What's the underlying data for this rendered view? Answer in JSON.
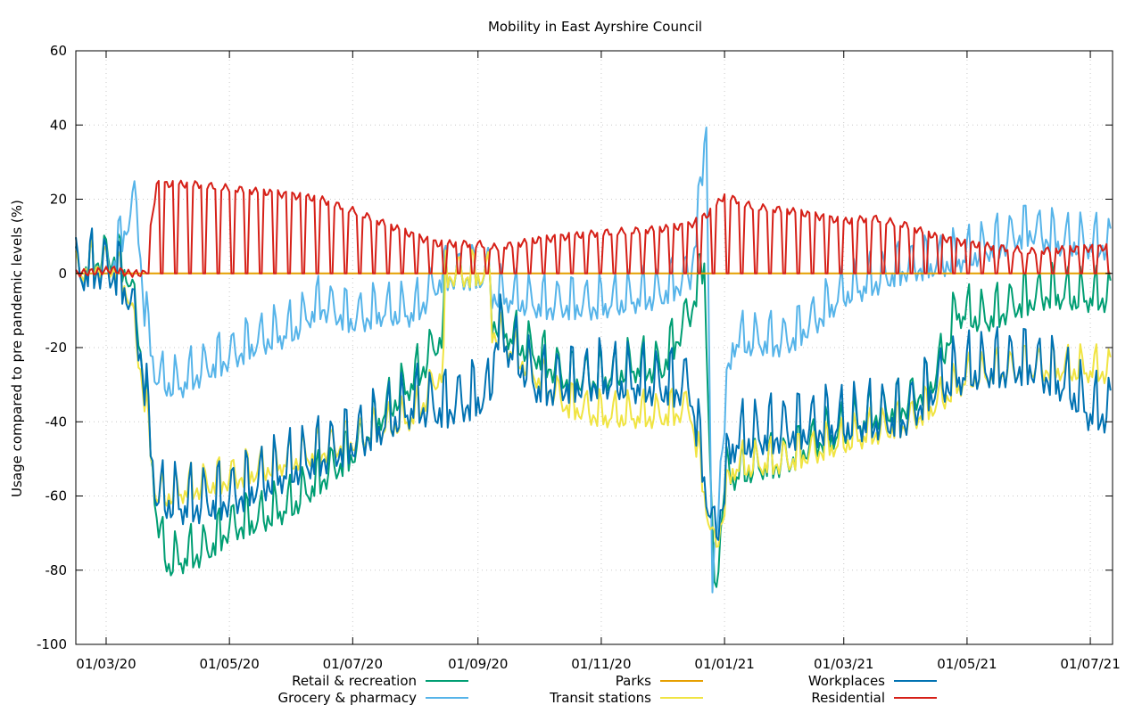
{
  "chart_data": {
    "type": "line",
    "title": "Mobility in East Ayrshire Council",
    "xlabel": "",
    "ylabel": "Usage compared to pre pandemic levels (%)",
    "ylim": [
      -100,
      60
    ],
    "yticks": [
      -100,
      -80,
      -60,
      -40,
      -20,
      0,
      20,
      40,
      60
    ],
    "xlim": [
      "2020-02-15",
      "2021-07-12"
    ],
    "xticks": [
      {
        "date": "2020-03-01",
        "label": "01/03/20"
      },
      {
        "date": "2020-05-01",
        "label": "01/05/20"
      },
      {
        "date": "2020-07-01",
        "label": "01/07/20"
      },
      {
        "date": "2020-09-01",
        "label": "01/09/20"
      },
      {
        "date": "2020-11-01",
        "label": "01/11/20"
      },
      {
        "date": "2021-01-01",
        "label": "01/01/21"
      },
      {
        "date": "2021-03-01",
        "label": "01/03/21"
      },
      {
        "date": "2021-05-01",
        "label": "01/05/21"
      },
      {
        "date": "2021-07-01",
        "label": "01/07/21"
      }
    ],
    "grid": true,
    "legend_position": "bottom",
    "series": [
      {
        "name": "Retail & recreation",
        "color": "#009e73",
        "points": [
          [
            "2020-02-15",
            0
          ],
          [
            "2020-02-25",
            4
          ],
          [
            "2020-03-05",
            5
          ],
          [
            "2020-03-12",
            0
          ],
          [
            "2020-03-17",
            -15
          ],
          [
            "2020-03-22",
            -40
          ],
          [
            "2020-03-27",
            -70
          ],
          [
            "2020-04-01",
            -78
          ],
          [
            "2020-04-10",
            -76
          ],
          [
            "2020-04-20",
            -74
          ],
          [
            "2020-05-01",
            -68
          ],
          [
            "2020-05-15",
            -66
          ],
          [
            "2020-06-01",
            -62
          ],
          [
            "2020-06-15",
            -55
          ],
          [
            "2020-07-01",
            -48
          ],
          [
            "2020-07-15",
            -38
          ],
          [
            "2020-08-01",
            -28
          ],
          [
            "2020-08-10",
            -20
          ],
          [
            "2020-08-15",
            -15
          ],
          [
            "2020-08-16",
            0
          ],
          [
            "2020-09-07",
            0
          ],
          [
            "2020-09-08",
            -12
          ],
          [
            "2020-09-20",
            -18
          ],
          [
            "2020-10-01",
            -22
          ],
          [
            "2020-10-15",
            -28
          ],
          [
            "2020-11-01",
            -28
          ],
          [
            "2020-11-15",
            -25
          ],
          [
            "2020-12-01",
            -25
          ],
          [
            "2020-12-15",
            -10
          ],
          [
            "2020-12-22",
            3
          ],
          [
            "2020-12-27",
            -90
          ],
          [
            "2021-01-01",
            -55
          ],
          [
            "2021-01-15",
            -52
          ],
          [
            "2021-02-01",
            -50
          ],
          [
            "2021-02-15",
            -45
          ],
          [
            "2021-03-01",
            -42
          ],
          [
            "2021-03-15",
            -38
          ],
          [
            "2021-04-01",
            -35
          ],
          [
            "2021-04-15",
            -28
          ],
          [
            "2021-04-26",
            -10
          ],
          [
            "2021-05-10",
            -12
          ],
          [
            "2021-05-25",
            -8
          ],
          [
            "2021-06-10",
            -5
          ],
          [
            "2021-06-25",
            -6
          ],
          [
            "2021-07-11",
            -6
          ]
        ]
      },
      {
        "name": "Grocery & pharmacy",
        "color": "#56b4e9",
        "points": [
          [
            "2020-02-15",
            0
          ],
          [
            "2020-02-25",
            2
          ],
          [
            "2020-03-05",
            4
          ],
          [
            "2020-03-12",
            15
          ],
          [
            "2020-03-16",
            20
          ],
          [
            "2020-03-20",
            -10
          ],
          [
            "2020-03-26",
            -28
          ],
          [
            "2020-04-05",
            -30
          ],
          [
            "2020-04-20",
            -25
          ],
          [
            "2020-05-01",
            -22
          ],
          [
            "2020-05-15",
            -18
          ],
          [
            "2020-06-01",
            -15
          ],
          [
            "2020-06-15",
            -8
          ],
          [
            "2020-07-01",
            -12
          ],
          [
            "2020-07-15",
            -10
          ],
          [
            "2020-08-01",
            -10
          ],
          [
            "2020-08-12",
            -2
          ],
          [
            "2020-08-16",
            0
          ],
          [
            "2020-09-07",
            0
          ],
          [
            "2020-09-08",
            -5
          ],
          [
            "2020-10-01",
            -8
          ],
          [
            "2020-11-01",
            -8
          ],
          [
            "2020-12-01",
            -5
          ],
          [
            "2020-12-15",
            0
          ],
          [
            "2020-12-20",
            20
          ],
          [
            "2020-12-23",
            43
          ],
          [
            "2020-12-26",
            -90
          ],
          [
            "2020-12-30",
            -50
          ],
          [
            "2021-01-05",
            -18
          ],
          [
            "2021-02-01",
            -18
          ],
          [
            "2021-02-15",
            -12
          ],
          [
            "2021-03-01",
            -5
          ],
          [
            "2021-03-15",
            -2
          ],
          [
            "2021-04-01",
            2
          ],
          [
            "2021-04-15",
            3
          ],
          [
            "2021-05-01",
            5
          ],
          [
            "2021-05-15",
            8
          ],
          [
            "2021-06-01",
            12
          ],
          [
            "2021-06-15",
            9
          ],
          [
            "2021-07-11",
            8
          ]
        ]
      },
      {
        "name": "Parks",
        "color": "#e69f00",
        "points": [
          [
            "2020-02-15",
            0
          ],
          [
            "2021-07-11",
            0
          ]
        ]
      },
      {
        "name": "Transit stations",
        "color": "#f0e442",
        "points": [
          [
            "2020-02-15",
            0
          ],
          [
            "2020-02-25",
            3
          ],
          [
            "2020-03-05",
            2
          ],
          [
            "2020-03-12",
            -5
          ],
          [
            "2020-03-18",
            -25
          ],
          [
            "2020-03-26",
            -60
          ],
          [
            "2020-04-10",
            -58
          ],
          [
            "2020-05-01",
            -55
          ],
          [
            "2020-06-01",
            -50
          ],
          [
            "2020-07-01",
            -45
          ],
          [
            "2020-08-01",
            -38
          ],
          [
            "2020-08-15",
            -25
          ],
          [
            "2020-08-16",
            0
          ],
          [
            "2020-09-07",
            0
          ],
          [
            "2020-09-08",
            -15
          ],
          [
            "2020-10-01",
            -28
          ],
          [
            "2020-10-15",
            -35
          ],
          [
            "2020-11-01",
            -38
          ],
          [
            "2020-12-01",
            -38
          ],
          [
            "2020-12-15",
            -36
          ],
          [
            "2020-12-27",
            -75
          ],
          [
            "2021-01-05",
            -52
          ],
          [
            "2021-02-01",
            -50
          ],
          [
            "2021-03-01",
            -45
          ],
          [
            "2021-04-01",
            -40
          ],
          [
            "2021-04-15",
            -35
          ],
          [
            "2021-05-01",
            -28
          ],
          [
            "2021-06-01",
            -25
          ],
          [
            "2021-07-11",
            -26
          ]
        ]
      },
      {
        "name": "Workplaces",
        "color": "#0072b2",
        "points": [
          [
            "2020-02-15",
            0
          ],
          [
            "2020-02-25",
            2
          ],
          [
            "2020-03-05",
            1
          ],
          [
            "2020-03-12",
            -5
          ],
          [
            "2020-03-18",
            -20
          ],
          [
            "2020-03-26",
            -60
          ],
          [
            "2020-04-10",
            -62
          ],
          [
            "2020-05-01",
            -60
          ],
          [
            "2020-06-01",
            -52
          ],
          [
            "2020-07-01",
            -45
          ],
          [
            "2020-08-01",
            -35
          ],
          [
            "2020-08-15",
            -36
          ],
          [
            "2020-08-20",
            -35
          ],
          [
            "2020-09-07",
            -32
          ],
          [
            "2020-09-10",
            -15
          ],
          [
            "2020-10-01",
            -30
          ],
          [
            "2020-11-01",
            -28
          ],
          [
            "2020-12-01",
            -30
          ],
          [
            "2020-12-15",
            -30
          ],
          [
            "2020-12-27",
            -72
          ],
          [
            "2021-01-05",
            -45
          ],
          [
            "2021-02-01",
            -42
          ],
          [
            "2021-03-01",
            -40
          ],
          [
            "2021-04-01",
            -38
          ],
          [
            "2021-04-15",
            -30
          ],
          [
            "2021-05-01",
            -26
          ],
          [
            "2021-06-01",
            -24
          ],
          [
            "2021-06-20",
            -30
          ],
          [
            "2021-07-01",
            -37
          ],
          [
            "2021-07-11",
            -37
          ]
        ]
      },
      {
        "name": "Residential",
        "color": "#d62018",
        "points": [
          [
            "2020-02-15",
            0
          ],
          [
            "2020-03-05",
            1
          ],
          [
            "2020-03-12",
            0
          ],
          [
            "2020-03-20",
            0
          ],
          [
            "2020-03-26",
            24
          ],
          [
            "2020-04-15",
            24
          ],
          [
            "2020-05-01",
            23
          ],
          [
            "2020-06-01",
            21
          ],
          [
            "2020-06-15",
            20
          ],
          [
            "2020-07-01",
            17
          ],
          [
            "2020-08-01",
            10
          ],
          [
            "2020-08-12",
            8
          ],
          [
            "2020-09-01",
            8
          ],
          [
            "2020-09-10",
            7
          ],
          [
            "2020-10-01",
            9
          ],
          [
            "2020-11-01",
            11
          ],
          [
            "2020-12-01",
            12
          ],
          [
            "2020-12-15",
            13
          ],
          [
            "2020-12-24",
            16
          ],
          [
            "2021-01-01",
            21
          ],
          [
            "2021-01-15",
            18
          ],
          [
            "2021-02-01",
            17
          ],
          [
            "2021-03-01",
            14
          ],
          [
            "2021-03-15",
            15
          ],
          [
            "2021-04-01",
            13
          ],
          [
            "2021-04-15",
            10
          ],
          [
            "2021-05-01",
            8
          ],
          [
            "2021-06-01",
            6
          ],
          [
            "2021-07-11",
            7
          ]
        ]
      }
    ]
  }
}
